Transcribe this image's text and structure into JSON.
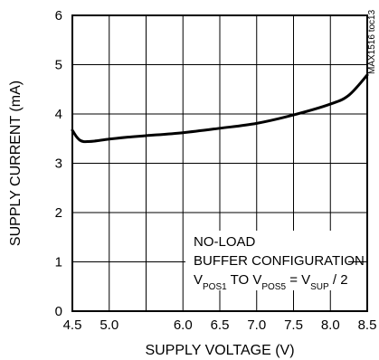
{
  "chart_data": {
    "type": "line",
    "title": "",
    "xlabel": "SUPPLY VOLTAGE (V)",
    "ylabel": "SUPPLY CURRENT (mA)",
    "xlim": [
      4.5,
      8.5
    ],
    "ylim": [
      0,
      6
    ],
    "x_ticks": [
      4.5,
      5.0,
      6.0,
      6.5,
      7.0,
      7.5,
      8.0,
      8.5
    ],
    "x_tick_labels": [
      "4.5",
      "5.0",
      "6.0",
      "6.5",
      "7.0",
      "7.5",
      "8.0",
      "8.5"
    ],
    "y_ticks": [
      0,
      1,
      2,
      3,
      4,
      5,
      6
    ],
    "y_tick_labels": [
      "0",
      "1",
      "2",
      "3",
      "4",
      "5",
      "6"
    ],
    "grid_x": [
      5.0,
      5.5,
      6.0,
      6.5,
      7.0,
      7.5,
      8.0
    ],
    "grid_y": [
      1,
      2,
      3,
      4,
      5
    ],
    "grid": true,
    "series": [
      {
        "x": [
          4.5,
          4.55,
          4.6,
          4.65,
          4.7,
          4.8,
          5.0,
          5.25,
          5.5,
          6.0,
          6.5,
          7.0,
          7.5,
          8.0,
          8.25,
          8.5
        ],
        "y": [
          3.67,
          3.55,
          3.47,
          3.44,
          3.44,
          3.45,
          3.49,
          3.53,
          3.56,
          3.62,
          3.71,
          3.81,
          3.98,
          4.2,
          4.38,
          4.79
        ]
      }
    ],
    "annotation": {
      "line1": "NO-LOAD",
      "line2": "BUFFER CONFIGURATION",
      "line3": {
        "v1": "V",
        "s1": "POS1",
        "mid": " TO V",
        "s2": "POS5",
        "eq": " = V",
        "s3": "SUP",
        "end": " / 2"
      }
    },
    "watermark": "MAX1516 toc13"
  }
}
